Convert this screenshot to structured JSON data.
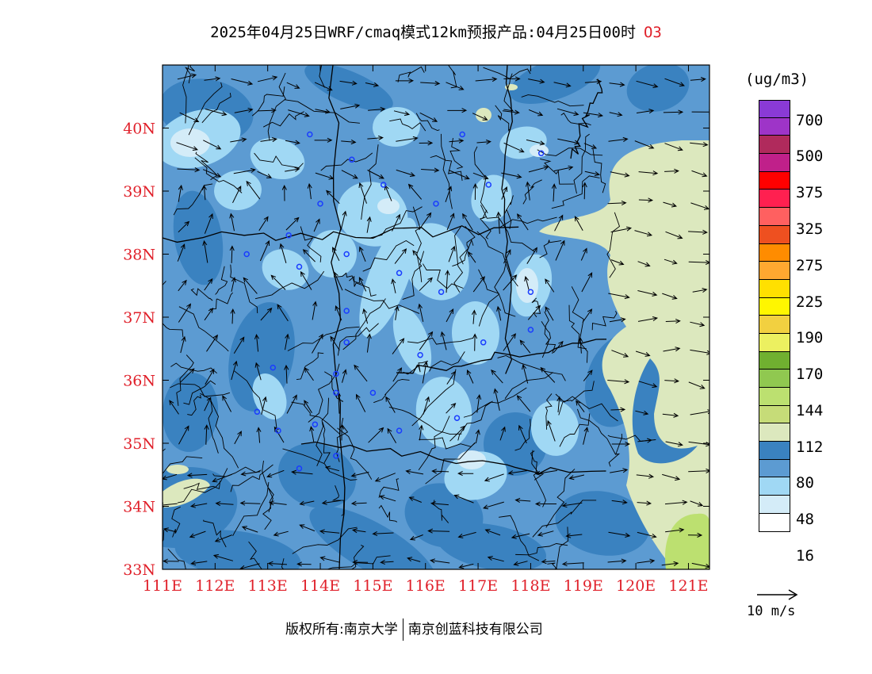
{
  "title": {
    "text": "2025年04月25日WRF/cmaq模式12km预报产品:04月25日00时",
    "species": "O3"
  },
  "map": {
    "lon_range": [
      111,
      121.4
    ],
    "lat_range": [
      33,
      41
    ],
    "lon_ticks": [
      "111E",
      "112E",
      "113E",
      "114E",
      "115E",
      "116E",
      "117E",
      "118E",
      "119E",
      "120E",
      "121E"
    ],
    "lat_ticks": [
      "33N",
      "34N",
      "35N",
      "36N",
      "37N",
      "38N",
      "39N",
      "40N"
    ],
    "cities": [
      [
        113.8,
        39.9
      ],
      [
        114.6,
        39.5
      ],
      [
        115.2,
        39.1
      ],
      [
        114.0,
        38.8
      ],
      [
        113.4,
        38.3
      ],
      [
        112.6,
        38.0
      ],
      [
        113.6,
        37.8
      ],
      [
        114.5,
        38.0
      ],
      [
        115.5,
        37.7
      ],
      [
        116.3,
        37.4
      ],
      [
        117.1,
        36.6
      ],
      [
        118.0,
        37.4
      ],
      [
        118.0,
        36.8
      ],
      [
        114.5,
        37.1
      ],
      [
        114.5,
        36.6
      ],
      [
        114.3,
        36.1
      ],
      [
        113.1,
        36.2
      ],
      [
        115.9,
        36.4
      ],
      [
        115.0,
        35.8
      ],
      [
        114.3,
        35.8
      ],
      [
        112.8,
        35.5
      ],
      [
        113.2,
        35.2
      ],
      [
        113.9,
        35.3
      ],
      [
        115.5,
        35.2
      ],
      [
        116.6,
        35.4
      ],
      [
        114.3,
        34.8
      ],
      [
        113.6,
        34.6
      ],
      [
        116.2,
        38.8
      ],
      [
        116.7,
        39.9
      ],
      [
        117.2,
        39.1
      ],
      [
        118.2,
        39.6
      ]
    ],
    "ocean_color": "#dce8be",
    "land_base_color": "#5c9bd2"
  },
  "legend": {
    "unit": "(ug/m3)",
    "levels": [
      "700",
      "500",
      "375",
      "325",
      "275",
      "225",
      "190",
      "170",
      "144",
      "112",
      "80",
      "48",
      "16"
    ],
    "colors": [
      "#8a3ad6",
      "#9e34c8",
      "#b02a5c",
      "#c0208a",
      "#ff0000",
      "#ff2050",
      "#ff6060",
      "#ee5020",
      "#ff8c00",
      "#ffa830",
      "#ffe000",
      "#fff600",
      "#f2d040",
      "#ecf060",
      "#70b030",
      "#90c850",
      "#bce070",
      "#c6dc78",
      "#dce8be",
      "#3a82c0",
      "#5c9bd2",
      "#a0d8f4",
      "#d4ecf8",
      "#ffffff"
    ]
  },
  "reference_vector": {
    "label": "10 m/s"
  },
  "copyright": {
    "left": "版权所有:南京大学",
    "right": "南京创蓝科技有限公司"
  }
}
